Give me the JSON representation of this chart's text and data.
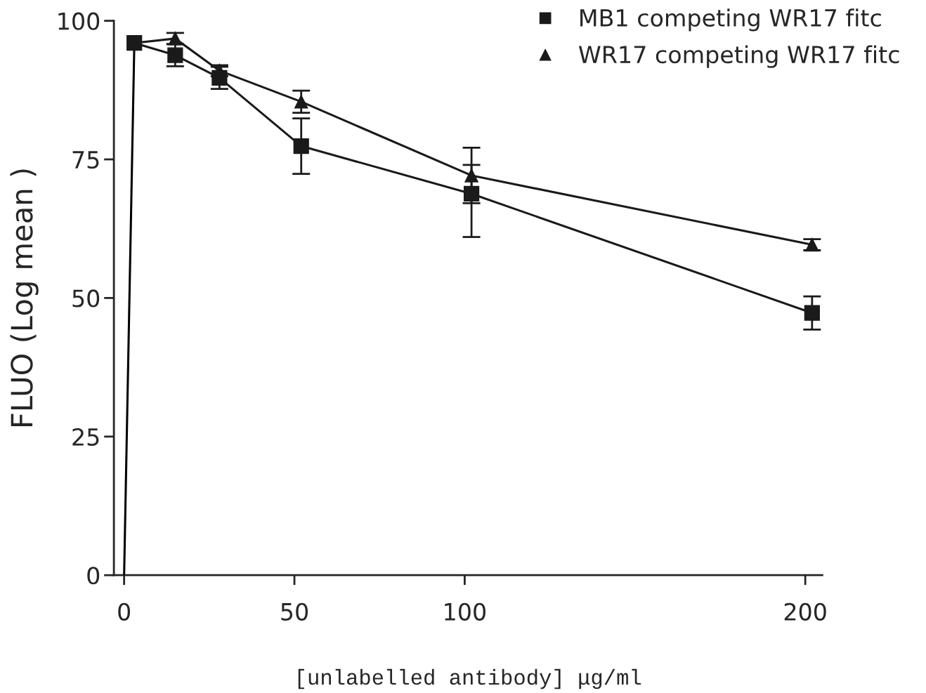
{
  "chart_data": {
    "type": "line",
    "xlabel": "[unlabelled antibody] μg/ml",
    "ylabel": "FLUO (Log mean )",
    "xlim": [
      -3,
      205
    ],
    "ylim": [
      0,
      100
    ],
    "xticks": [
      0,
      50,
      100,
      200
    ],
    "yticks": [
      0,
      25,
      50,
      75,
      100
    ],
    "grid": false,
    "legend": "top right",
    "series": [
      {
        "type": "line",
        "marker": "none",
        "color": "#000000",
        "x": [
          0,
          3
        ],
        "values": [
          0,
          96
        ]
      },
      {
        "name": "MB1 competing WR17 fitc",
        "marker": "square",
        "color": "#1a1a1a",
        "x": [
          3,
          15,
          28,
          52,
          102,
          202
        ],
        "values": [
          96,
          93.8,
          89.7,
          77.4,
          68.8,
          47.3
        ],
        "errors": [
          null,
          2,
          2,
          5,
          [
            61,
            74
          ],
          3
        ]
      },
      {
        "name": "WR17 competing WR17 fitc",
        "marker": "triangle",
        "color": "#1a1a1a",
        "x": [
          3,
          15,
          28,
          52,
          102,
          202
        ],
        "values": [
          96,
          96.8,
          91,
          85.4,
          72.1,
          59.6
        ],
        "errors": [
          null,
          1,
          1,
          2,
          5,
          1
        ]
      }
    ]
  }
}
